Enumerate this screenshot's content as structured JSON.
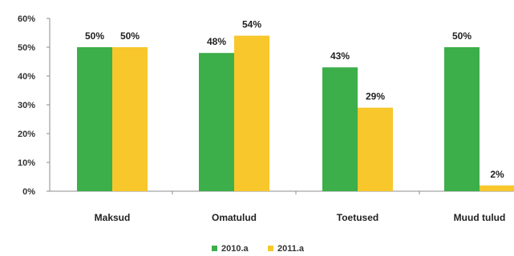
{
  "chart_data": {
    "type": "bar",
    "categories": [
      "Maksud",
      "Omatulud",
      "Toetused",
      "Muud tulud"
    ],
    "series": [
      {
        "name": "2010.a",
        "values": [
          50,
          48,
          43,
          50
        ],
        "labels": [
          "50%",
          "48%",
          "43%",
          "50%"
        ],
        "color": "#3cae4a"
      },
      {
        "name": "2011.a",
        "values": [
          50,
          54,
          29,
          2
        ],
        "labels": [
          "50%",
          "54%",
          "29%",
          "2%"
        ],
        "color": "#f7c72b"
      }
    ],
    "ylim": [
      0,
      60
    ],
    "yticks": [
      "0%",
      "10%",
      "20%",
      "30%",
      "40%",
      "50%",
      "60%"
    ],
    "grid": false,
    "legend": "bottom"
  }
}
